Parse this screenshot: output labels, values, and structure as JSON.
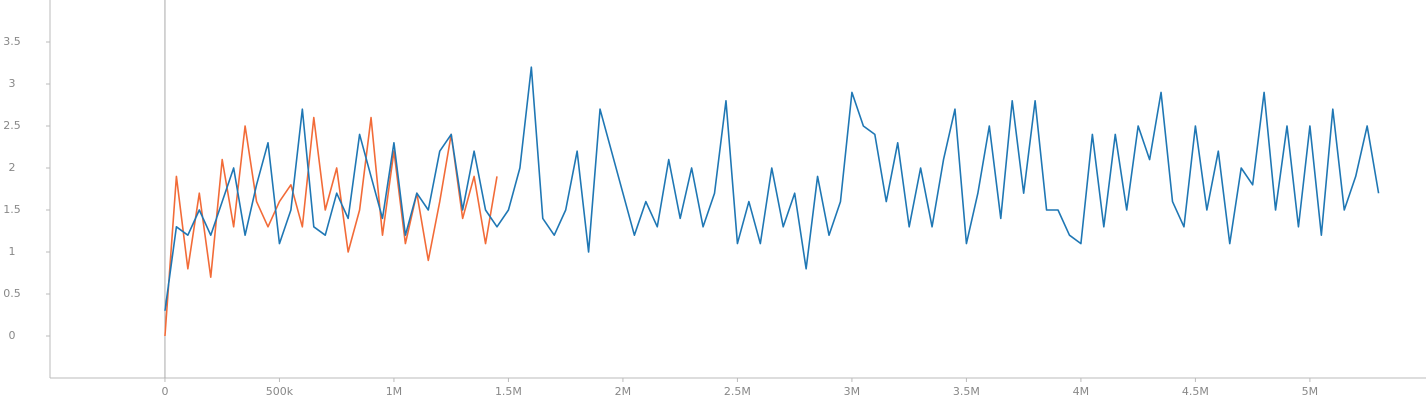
{
  "chart_data": {
    "type": "line",
    "xlim": [
      -502000,
      5507000
    ],
    "ylim": [
      -0.5,
      4
    ],
    "xticks": [
      {
        "value": 0,
        "label": "0"
      },
      {
        "value": 500000,
        "label": "500k"
      },
      {
        "value": 1000000,
        "label": "1M"
      },
      {
        "value": 1500000,
        "label": "1.5M"
      },
      {
        "value": 2000000,
        "label": "2M"
      },
      {
        "value": 2500000,
        "label": "2.5M"
      },
      {
        "value": 3000000,
        "label": "3M"
      },
      {
        "value": 3500000,
        "label": "3.5M"
      },
      {
        "value": 4000000,
        "label": "4M"
      },
      {
        "value": 4500000,
        "label": "4.5M"
      },
      {
        "value": 5000000,
        "label": "5M"
      }
    ],
    "yticks": [
      0,
      0.5,
      1,
      1.5,
      2,
      2.5,
      3,
      3.5
    ],
    "series": [
      {
        "color": "#f26b38",
        "x": [
          0,
          50000,
          100000,
          150000,
          200000,
          250000,
          300000,
          350000,
          400000,
          450000,
          500000,
          550000,
          600000,
          650000,
          700000,
          750000,
          800000,
          850000,
          900000,
          950000,
          1000000,
          1050000,
          1100000,
          1150000,
          1200000,
          1250000,
          1300000,
          1350000,
          1400000,
          1450000
        ],
        "values": [
          0.0,
          1.9,
          0.8,
          1.7,
          0.7,
          2.1,
          1.3,
          2.5,
          1.6,
          1.3,
          1.6,
          1.8,
          1.3,
          2.6,
          1.5,
          2.0,
          1.0,
          1.5,
          2.6,
          1.2,
          2.2,
          1.1,
          1.7,
          0.9,
          1.6,
          2.4,
          1.4,
          1.9,
          1.1,
          1.9
        ]
      },
      {
        "color": "#1f77b4",
        "x": [
          0,
          50000,
          100000,
          150000,
          200000,
          250000,
          300000,
          350000,
          400000,
          450000,
          500000,
          550000,
          600000,
          650000,
          700000,
          750000,
          800000,
          850000,
          900000,
          950000,
          1000000,
          1050000,
          1100000,
          1150000,
          1200000,
          1250000,
          1300000,
          1350000,
          1400000,
          1450000,
          1500000,
          1550000,
          1600000,
          1650000,
          1700000,
          1750000,
          1800000,
          1850000,
          1900000,
          1950000,
          2000000,
          2050000,
          2100000,
          2150000,
          2200000,
          2250000,
          2300000,
          2350000,
          2400000,
          2450000,
          2500000,
          2550000,
          2600000,
          2650000,
          2700000,
          2750000,
          2800000,
          2850000,
          2900000,
          2950000,
          3000000,
          3050000,
          3100000,
          3150000,
          3200000,
          3250000,
          3300000,
          3350000,
          3400000,
          3450000,
          3500000,
          3550000,
          3600000,
          3650000,
          3700000,
          3750000,
          3800000,
          3850000,
          3900000,
          3950000,
          4000000,
          4050000,
          4100000,
          4150000,
          4200000,
          4250000,
          4300000,
          4350000,
          4400000,
          4450000,
          4500000,
          4550000,
          4600000,
          4650000,
          4700000,
          4750000,
          4800000,
          4850000,
          4900000,
          4950000,
          5000000,
          5050000,
          5100000,
          5150000,
          5200000,
          5250000,
          5300000
        ],
        "values": [
          0.3,
          1.3,
          1.2,
          1.5,
          1.2,
          1.6,
          2.0,
          1.2,
          1.8,
          2.3,
          1.1,
          1.5,
          2.7,
          1.3,
          1.2,
          1.7,
          1.4,
          2.4,
          1.9,
          1.4,
          2.3,
          1.2,
          1.7,
          1.5,
          2.2,
          2.4,
          1.5,
          2.2,
          1.5,
          1.3,
          1.5,
          2.0,
          3.2,
          1.4,
          1.2,
          1.5,
          2.2,
          1.0,
          2.7,
          2.2,
          1.7,
          1.2,
          1.6,
          1.3,
          2.1,
          1.4,
          2.0,
          1.3,
          1.7,
          2.8,
          1.1,
          1.6,
          1.1,
          2.0,
          1.3,
          1.7,
          0.8,
          1.9,
          1.2,
          1.6,
          2.9,
          2.5,
          2.4,
          1.6,
          2.3,
          1.3,
          2.0,
          1.3,
          2.1,
          2.7,
          1.1,
          1.7,
          2.5,
          1.4,
          2.8,
          1.7,
          2.8,
          1.5,
          1.5,
          1.2,
          1.1,
          2.4,
          1.3,
          2.4,
          1.5,
          2.5,
          2.1,
          2.9,
          1.6,
          1.3,
          2.5,
          1.5,
          2.2,
          1.1,
          2.0,
          1.8,
          2.9,
          1.5,
          2.5,
          1.3,
          2.5,
          1.2,
          2.7,
          1.5,
          1.9,
          2.5,
          1.7
        ]
      }
    ]
  }
}
